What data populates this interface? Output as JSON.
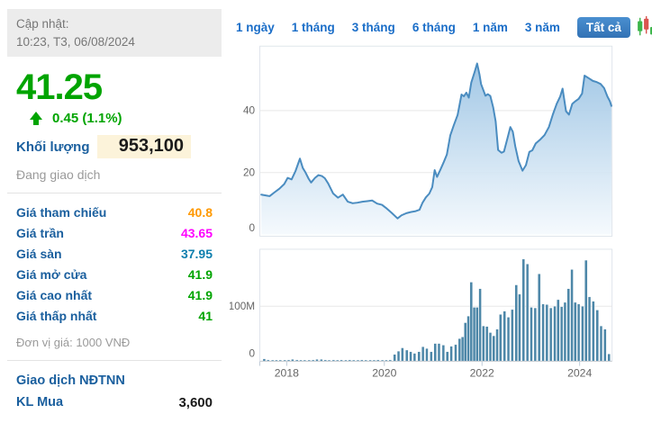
{
  "panel": {
    "update_label": "Cập nhật:",
    "update_time": "10:23, T3, 06/08/2024",
    "last_price": "41.25",
    "change_text": "0.45 (1.1%)",
    "volume_label": "Khối lượng",
    "volume_value": "953,100",
    "status": "Đang giao dịch",
    "rows": [
      {
        "label": "Giá tham chiếu",
        "value": "40.8",
        "color": "#ff9900"
      },
      {
        "label": "Giá trần",
        "value": "43.65",
        "color": "#ff00ff"
      },
      {
        "label": "Giá sàn",
        "value": "37.95",
        "color": "#0e7fae"
      },
      {
        "label": "Giá mở cửa",
        "value": "41.9",
        "color": "#00a400"
      },
      {
        "label": "Giá cao nhất",
        "value": "41.9",
        "color": "#00a400"
      },
      {
        "label": "Giá thấp nhất",
        "value": "41",
        "color": "#00a400"
      }
    ],
    "unit_note": "Đơn vị giá: 1000 VNĐ",
    "foreign_title": "Giao dịch NĐTNN",
    "kl_mua_label": "KL Mua",
    "kl_mua_value": "3,600"
  },
  "toolbar": {
    "ranges": [
      {
        "label": "1 ngày",
        "selected": false
      },
      {
        "label": "1 tháng",
        "selected": false
      },
      {
        "label": "3 tháng",
        "selected": false
      },
      {
        "label": "6 tháng",
        "selected": false
      },
      {
        "label": "1 năm",
        "selected": false
      },
      {
        "label": "3 năm",
        "selected": false
      },
      {
        "label": "Tất cả",
        "selected": true
      }
    ],
    "chart_type_icon": "candlestick-icon"
  },
  "colors": {
    "price_up_green": "#00a400",
    "label_blue": "#1a5f9e",
    "link_blue": "#1b6ec8",
    "selected_btn_blue": "#3f7fc0",
    "line_blue": "#4a8cc0",
    "area_fill_top": "#a9cde8",
    "area_fill_bottom": "#f2f8fd",
    "volume_bar": "#4d87a8",
    "grid_gray": "#e8e8e8",
    "plot_border": "#dde3ea",
    "axis_text": "#666666",
    "candle_green": "#3cb54a",
    "candle_red": "#d9544f"
  },
  "chart_data": [
    {
      "type": "area",
      "title": "",
      "xlabel": "",
      "ylabel": "",
      "x_unit": "decimal_year",
      "xlim": [
        2017.45,
        2024.68
      ],
      "ylim": [
        0,
        60.8
      ],
      "y_ticks": [
        0,
        20,
        40
      ],
      "x_ticks": [],
      "grid": true,
      "legend": "none",
      "series": [
        {
          "name": "price",
          "points": [
            [
              2017.48,
              12.9
            ],
            [
              2017.58,
              12.6
            ],
            [
              2017.65,
              12.4
            ],
            [
              2017.75,
              13.6
            ],
            [
              2017.85,
              14.8
            ],
            [
              2017.95,
              16.3
            ],
            [
              2018.02,
              18.3
            ],
            [
              2018.1,
              17.8
            ],
            [
              2018.18,
              20.5
            ],
            [
              2018.27,
              24.5
            ],
            [
              2018.33,
              21.5
            ],
            [
              2018.38,
              20.2
            ],
            [
              2018.45,
              18.0
            ],
            [
              2018.5,
              16.8
            ],
            [
              2018.58,
              18.3
            ],
            [
              2018.65,
              19.2
            ],
            [
              2018.72,
              18.9
            ],
            [
              2018.78,
              18.2
            ],
            [
              2018.85,
              16.5
            ],
            [
              2018.95,
              13.3
            ],
            [
              2019.05,
              11.9
            ],
            [
              2019.15,
              12.9
            ],
            [
              2019.25,
              10.6
            ],
            [
              2019.35,
              10.1
            ],
            [
              2019.45,
              10.3
            ],
            [
              2019.55,
              10.6
            ],
            [
              2019.65,
              10.8
            ],
            [
              2019.75,
              11.0
            ],
            [
              2019.85,
              10.0
            ],
            [
              2019.95,
              9.6
            ],
            [
              2020.05,
              8.4
            ],
            [
              2020.15,
              7.0
            ],
            [
              2020.27,
              5.2
            ],
            [
              2020.35,
              6.2
            ],
            [
              2020.45,
              6.9
            ],
            [
              2020.55,
              7.3
            ],
            [
              2020.63,
              7.5
            ],
            [
              2020.72,
              8.0
            ],
            [
              2020.78,
              10.2
            ],
            [
              2020.85,
              12.0
            ],
            [
              2020.92,
              13.2
            ],
            [
              2020.98,
              15.3
            ],
            [
              2021.03,
              20.8
            ],
            [
              2021.08,
              18.6
            ],
            [
              2021.15,
              21.0
            ],
            [
              2021.22,
              23.5
            ],
            [
              2021.28,
              25.8
            ],
            [
              2021.35,
              32.0
            ],
            [
              2021.42,
              35.2
            ],
            [
              2021.5,
              38.6
            ],
            [
              2021.58,
              45.2
            ],
            [
              2021.63,
              44.6
            ],
            [
              2021.68,
              45.8
            ],
            [
              2021.73,
              44.2
            ],
            [
              2021.78,
              49.0
            ],
            [
              2021.85,
              52.5
            ],
            [
              2021.9,
              55.2
            ],
            [
              2021.95,
              51.5
            ],
            [
              2021.98,
              48.6
            ],
            [
              2022.07,
              44.8
            ],
            [
              2022.12,
              45.3
            ],
            [
              2022.17,
              44.7
            ],
            [
              2022.23,
              41.0
            ],
            [
              2022.28,
              36.5
            ],
            [
              2022.33,
              27.3
            ],
            [
              2022.4,
              26.4
            ],
            [
              2022.45,
              26.8
            ],
            [
              2022.52,
              31.0
            ],
            [
              2022.58,
              34.7
            ],
            [
              2022.63,
              33.2
            ],
            [
              2022.68,
              28.5
            ],
            [
              2022.75,
              23.7
            ],
            [
              2022.83,
              20.6
            ],
            [
              2022.9,
              22.4
            ],
            [
              2022.97,
              26.7
            ],
            [
              2023.03,
              27.2
            ],
            [
              2023.1,
              29.4
            ],
            [
              2023.2,
              30.8
            ],
            [
              2023.28,
              32.1
            ],
            [
              2023.37,
              34.7
            ],
            [
              2023.45,
              38.7
            ],
            [
              2023.53,
              42.2
            ],
            [
              2023.6,
              44.5
            ],
            [
              2023.65,
              47.1
            ],
            [
              2023.72,
              39.8
            ],
            [
              2023.78,
              38.7
            ],
            [
              2023.85,
              42.2
            ],
            [
              2023.92,
              43.1
            ],
            [
              2023.98,
              43.8
            ],
            [
              2024.05,
              45.5
            ],
            [
              2024.1,
              51.3
            ],
            [
              2024.18,
              50.5
            ],
            [
              2024.27,
              49.6
            ],
            [
              2024.35,
              49.2
            ],
            [
              2024.43,
              48.6
            ],
            [
              2024.5,
              47.3
            ],
            [
              2024.57,
              44.5
            ],
            [
              2024.62,
              43.0
            ],
            [
              2024.65,
              41.5
            ]
          ]
        }
      ]
    },
    {
      "type": "bar",
      "title": "",
      "xlabel": "",
      "ylabel": "",
      "value_unit": "millions_of_shares",
      "xlim": [
        2017.45,
        2024.68
      ],
      "ylim": [
        0,
        204
      ],
      "y_ticks": [
        {
          "v": 0,
          "label": "0"
        },
        {
          "v": 100,
          "label": "100M"
        }
      ],
      "x_ticks": [
        {
          "v": 2018,
          "label": "2018"
        },
        {
          "v": 2020,
          "label": "2020"
        },
        {
          "v": 2022,
          "label": "2022"
        },
        {
          "v": 2024,
          "label": "2024"
        }
      ],
      "grid": true,
      "legend": "none",
      "points": [
        [
          2017.54,
          4
        ],
        [
          2017.62,
          2
        ],
        [
          2017.71,
          1
        ],
        [
          2017.79,
          1
        ],
        [
          2017.87,
          1
        ],
        [
          2017.96,
          1
        ],
        [
          2018.04,
          2
        ],
        [
          2018.12,
          3
        ],
        [
          2018.21,
          2
        ],
        [
          2018.29,
          1
        ],
        [
          2018.37,
          1
        ],
        [
          2018.46,
          1
        ],
        [
          2018.54,
          2
        ],
        [
          2018.62,
          3
        ],
        [
          2018.71,
          3
        ],
        [
          2018.79,
          2
        ],
        [
          2018.87,
          1
        ],
        [
          2018.96,
          2
        ],
        [
          2019.04,
          1
        ],
        [
          2019.12,
          2
        ],
        [
          2019.21,
          1
        ],
        [
          2019.29,
          2
        ],
        [
          2019.37,
          1
        ],
        [
          2019.46,
          1
        ],
        [
          2019.54,
          2
        ],
        [
          2019.62,
          1
        ],
        [
          2019.71,
          1
        ],
        [
          2019.79,
          1
        ],
        [
          2019.87,
          2
        ],
        [
          2019.96,
          1
        ],
        [
          2020.04,
          1
        ],
        [
          2020.12,
          2
        ],
        [
          2020.21,
          12
        ],
        [
          2020.29,
          18
        ],
        [
          2020.37,
          24
        ],
        [
          2020.46,
          20
        ],
        [
          2020.54,
          17
        ],
        [
          2020.62,
          14
        ],
        [
          2020.71,
          17
        ],
        [
          2020.79,
          26
        ],
        [
          2020.87,
          23
        ],
        [
          2020.96,
          17
        ],
        [
          2021.04,
          32
        ],
        [
          2021.12,
          32
        ],
        [
          2021.21,
          29
        ],
        [
          2021.29,
          17
        ],
        [
          2021.37,
          27
        ],
        [
          2021.46,
          30
        ],
        [
          2021.54,
          41
        ],
        [
          2021.6,
          44
        ],
        [
          2021.66,
          70
        ],
        [
          2021.72,
          82
        ],
        [
          2021.78,
          144
        ],
        [
          2021.84,
          98
        ],
        [
          2021.9,
          98
        ],
        [
          2021.96,
          132
        ],
        [
          2022.03,
          64
        ],
        [
          2022.1,
          63
        ],
        [
          2022.17,
          52
        ],
        [
          2022.24,
          46
        ],
        [
          2022.31,
          58
        ],
        [
          2022.38,
          85
        ],
        [
          2022.46,
          91
        ],
        [
          2022.54,
          80
        ],
        [
          2022.62,
          94
        ],
        [
          2022.7,
          139
        ],
        [
          2022.77,
          122
        ],
        [
          2022.85,
          186
        ],
        [
          2022.93,
          177
        ],
        [
          2023.01,
          98
        ],
        [
          2023.09,
          97
        ],
        [
          2023.17,
          159
        ],
        [
          2023.25,
          104
        ],
        [
          2023.33,
          103
        ],
        [
          2023.41,
          97
        ],
        [
          2023.49,
          100
        ],
        [
          2023.56,
          112
        ],
        [
          2023.63,
          99
        ],
        [
          2023.7,
          107
        ],
        [
          2023.77,
          132
        ],
        [
          2023.84,
          167
        ],
        [
          2023.91,
          107
        ],
        [
          2023.98,
          104
        ],
        [
          2024.06,
          100
        ],
        [
          2024.13,
          184
        ],
        [
          2024.2,
          117
        ],
        [
          2024.28,
          109
        ],
        [
          2024.36,
          93
        ],
        [
          2024.44,
          64
        ],
        [
          2024.52,
          58
        ],
        [
          2024.6,
          13
        ]
      ]
    }
  ]
}
